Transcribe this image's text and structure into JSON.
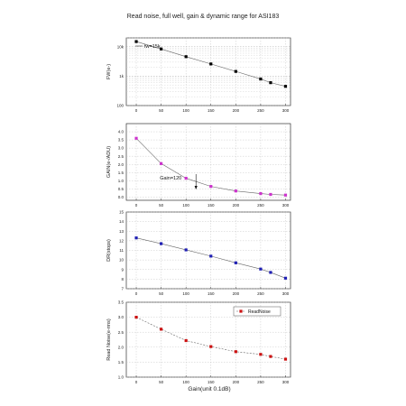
{
  "title": "Read noise, full well, gain & dynamic range for ASI183",
  "shared_xlabel": "Gain(unit 0.1dB)",
  "x_ticks": [
    "0",
    "50",
    "100",
    "150",
    "200",
    "250",
    "300"
  ],
  "colors": {
    "fw": "#000000",
    "gain": "#cc33cc",
    "dr": "#1f1fb4",
    "rn": "#cc1111",
    "fit_line": "#666666"
  },
  "chart_data": [
    {
      "type": "line",
      "ylabel": "FW(e-)",
      "yscale": "log",
      "ylim": [
        100,
        20000
      ],
      "xlim": [
        -20,
        310
      ],
      "ytick_labels": [
        "100",
        "1k",
        "10k"
      ],
      "annotation": "fw=15k",
      "series": [
        {
          "x": [
            0,
            50,
            100,
            150,
            200,
            250,
            270,
            300
          ],
          "values": [
            15000,
            8400,
            4600,
            2600,
            1450,
            800,
            600,
            450
          ]
        }
      ]
    },
    {
      "type": "line",
      "ylabel": "GAIN(e-/ADU)",
      "ylim": [
        -0.2,
        4.5
      ],
      "xlim": [
        -20,
        310
      ],
      "ytick_labels": [
        "0.0",
        "0.5",
        "1.0",
        "1.5",
        "2.0",
        "2.5",
        "3.0",
        "3.5",
        "4.0"
      ],
      "annotation": "Gain=120",
      "series": [
        {
          "x": [
            0,
            50,
            100,
            150,
            200,
            250,
            270,
            300
          ],
          "values": [
            3.6,
            2.05,
            1.15,
            0.65,
            0.37,
            0.21,
            0.16,
            0.12
          ]
        }
      ]
    },
    {
      "type": "line",
      "ylabel": "DR(stops)",
      "ylim": [
        7,
        15
      ],
      "xlim": [
        -20,
        310
      ],
      "ytick_labels": [
        "7",
        "8",
        "9",
        "10",
        "11",
        "12",
        "13",
        "14",
        "15"
      ],
      "series": [
        {
          "x": [
            0,
            50,
            100,
            150,
            200,
            250,
            270,
            300
          ],
          "values": [
            12.3,
            11.7,
            11.05,
            10.4,
            9.7,
            9.05,
            8.7,
            8.1
          ]
        }
      ]
    },
    {
      "type": "line",
      "ylabel": "Read Noise(e-rms)",
      "ylim": [
        1.0,
        3.5
      ],
      "xlim": [
        -20,
        310
      ],
      "ytick_labels": [
        "1.0",
        "1.5",
        "2.0",
        "2.5",
        "3.0",
        "3.5"
      ],
      "legend": "ReadNoise",
      "legend_position": "top-right",
      "series": [
        {
          "name": "ReadNoise",
          "x": [
            0,
            50,
            100,
            150,
            200,
            250,
            270,
            300
          ],
          "values": [
            3.0,
            2.6,
            2.22,
            2.02,
            1.85,
            1.76,
            1.69,
            1.6
          ]
        }
      ]
    }
  ]
}
